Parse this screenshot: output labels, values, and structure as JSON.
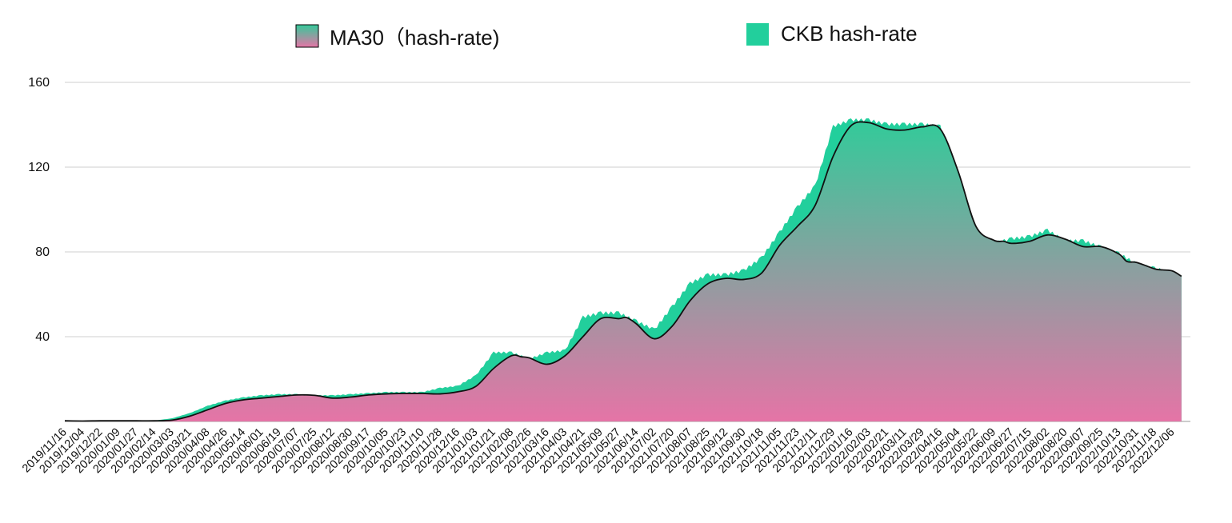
{
  "chart_data": {
    "type": "area",
    "colors": {
      "ckb": "#22cf9c",
      "ma_top": "#35c99a",
      "ma_bottom": "#e574a6",
      "ma_line": "#111111"
    },
    "legend": {
      "placement": "top",
      "entries": [
        {
          "label": "MA30（hash-rate)",
          "series": "ma30"
        },
        {
          "label": "CKB hash-rate",
          "series": "ckb"
        }
      ]
    },
    "grid": true,
    "ylim": [
      0,
      160
    ],
    "yticks": [
      40,
      80,
      120,
      160
    ],
    "xlim": [
      "2019-11-16",
      "2022-12-24"
    ],
    "xticks": [
      "2019/11/16",
      "2019/12/04",
      "2019/12/22",
      "2020/01/09",
      "2020/01/27",
      "2020/02/14",
      "2020/03/03",
      "2020/03/21",
      "2020/04/08",
      "2020/04/26",
      "2020/05/14",
      "2020/06/01",
      "2020/06/19",
      "2020/07/07",
      "2020/07/25",
      "2020/08/12",
      "2020/08/30",
      "2020/09/17",
      "2020/10/05",
      "2020/10/23",
      "2020/11/10",
      "2020/11/28",
      "2020/12/16",
      "2021/01/03",
      "2021/01/21",
      "2021/02/08",
      "2021/02/26",
      "2021/03/16",
      "2021/04/03",
      "2021/04/21",
      "2021/05/09",
      "2021/05/27",
      "2021/06/14",
      "2021/07/02",
      "2021/07/20",
      "2021/08/07",
      "2021/08/25",
      "2021/09/12",
      "2021/09/30",
      "2021/10/18",
      "2021/11/05",
      "2021/11/23",
      "2021/12/11",
      "2021/12/29",
      "2022/01/16",
      "2022/02/03",
      "2022/02/21",
      "2022/03/11",
      "2022/03/29",
      "2022/04/16",
      "2022/05/04",
      "2022/05/22",
      "2022/06/09",
      "2022/06/27",
      "2022/07/15",
      "2022/08/02",
      "2022/08/20",
      "2022/09/07",
      "2022/09/25",
      "2022/10/13",
      "2022/10/31",
      "2022/11/18",
      "2022/12/06"
    ],
    "series": [
      {
        "name": "MA30（hash-rate)",
        "key": "ma30",
        "points": [
          [
            "2019-11-16",
            0.3
          ],
          [
            "2019-12-04",
            0.2
          ],
          [
            "2019-12-22",
            0.3
          ],
          [
            "2020-01-09",
            0.3
          ],
          [
            "2020-01-27",
            0.3
          ],
          [
            "2020-02-14",
            0.3
          ],
          [
            "2020-03-03",
            0.6
          ],
          [
            "2020-03-21",
            2.5
          ],
          [
            "2020-04-08",
            5.5
          ],
          [
            "2020-04-26",
            8.5
          ],
          [
            "2020-05-14",
            10.2
          ],
          [
            "2020-06-01",
            11
          ],
          [
            "2020-06-19",
            11.8
          ],
          [
            "2020-07-07",
            12.5
          ],
          [
            "2020-07-25",
            12.3
          ],
          [
            "2020-08-12",
            11
          ],
          [
            "2020-08-30",
            11.5
          ],
          [
            "2020-09-17",
            12.5
          ],
          [
            "2020-10-05",
            13
          ],
          [
            "2020-10-23",
            13.2
          ],
          [
            "2020-11-10",
            13.2
          ],
          [
            "2020-11-28",
            13
          ],
          [
            "2020-12-16",
            14
          ],
          [
            "2021-01-03",
            16.5
          ],
          [
            "2021-01-21",
            25
          ],
          [
            "2021-02-08",
            31
          ],
          [
            "2021-02-18",
            30.5
          ],
          [
            "2021-02-26",
            30
          ],
          [
            "2021-03-16",
            27
          ],
          [
            "2021-04-03",
            31
          ],
          [
            "2021-04-21",
            40
          ],
          [
            "2021-05-09",
            48.5
          ],
          [
            "2021-05-27",
            48.5
          ],
          [
            "2021-06-04",
            49
          ],
          [
            "2021-06-14",
            46
          ],
          [
            "2021-07-02",
            39
          ],
          [
            "2021-07-20",
            45
          ],
          [
            "2021-08-07",
            57
          ],
          [
            "2021-08-25",
            65
          ],
          [
            "2021-09-12",
            67.5
          ],
          [
            "2021-09-30",
            67
          ],
          [
            "2021-10-18",
            70
          ],
          [
            "2021-11-05",
            83
          ],
          [
            "2021-11-23",
            92
          ],
          [
            "2021-12-11",
            102
          ],
          [
            "2021-12-29",
            125
          ],
          [
            "2022-01-16",
            139.5
          ],
          [
            "2022-02-03",
            141
          ],
          [
            "2022-02-21",
            138
          ],
          [
            "2022-03-11",
            137.5
          ],
          [
            "2022-03-29",
            139
          ],
          [
            "2022-04-16",
            138
          ],
          [
            "2022-05-04",
            118
          ],
          [
            "2022-05-22",
            92
          ],
          [
            "2022-06-09",
            85.5
          ],
          [
            "2022-06-19",
            85
          ],
          [
            "2022-06-27",
            84
          ],
          [
            "2022-07-15",
            85
          ],
          [
            "2022-08-02",
            88
          ],
          [
            "2022-08-20",
            86
          ],
          [
            "2022-09-07",
            82.5
          ],
          [
            "2022-09-25",
            82.5
          ],
          [
            "2022-10-13",
            79
          ],
          [
            "2022-10-21",
            75.5
          ],
          [
            "2022-10-31",
            75
          ],
          [
            "2022-11-18",
            72
          ],
          [
            "2022-11-26",
            71.5
          ],
          [
            "2022-12-06",
            71
          ],
          [
            "2022-12-15",
            68.5
          ]
        ]
      },
      {
        "name": "CKB hash-rate",
        "key": "ckb",
        "points": [
          [
            "2019-11-16",
            0.3
          ],
          [
            "2019-12-04",
            0.3
          ],
          [
            "2019-12-22",
            0.4
          ],
          [
            "2020-01-09",
            0.4
          ],
          [
            "2020-01-27",
            0.4
          ],
          [
            "2020-02-14",
            0.4
          ],
          [
            "2020-03-03",
            1.5
          ],
          [
            "2020-03-21",
            4
          ],
          [
            "2020-04-08",
            7.5
          ],
          [
            "2020-04-26",
            10
          ],
          [
            "2020-05-14",
            11.5
          ],
          [
            "2020-06-01",
            12.5
          ],
          [
            "2020-06-19",
            13
          ],
          [
            "2020-07-07",
            13
          ],
          [
            "2020-07-25",
            12.5
          ],
          [
            "2020-08-12",
            12.5
          ],
          [
            "2020-08-30",
            13
          ],
          [
            "2020-09-17",
            13.5
          ],
          [
            "2020-10-05",
            14
          ],
          [
            "2020-10-23",
            14
          ],
          [
            "2020-11-10",
            14
          ],
          [
            "2020-11-28",
            16
          ],
          [
            "2020-12-16",
            17
          ],
          [
            "2021-01-03",
            22
          ],
          [
            "2021-01-21",
            33
          ],
          [
            "2021-02-08",
            33
          ],
          [
            "2021-02-26",
            30
          ],
          [
            "2021-03-16",
            33
          ],
          [
            "2021-04-03",
            34
          ],
          [
            "2021-04-21",
            50
          ],
          [
            "2021-05-09",
            52
          ],
          [
            "2021-05-27",
            52
          ],
          [
            "2021-06-14",
            48
          ],
          [
            "2021-07-02",
            44
          ],
          [
            "2021-07-20",
            55
          ],
          [
            "2021-08-07",
            66
          ],
          [
            "2021-08-25",
            70
          ],
          [
            "2021-09-12",
            70
          ],
          [
            "2021-09-30",
            72
          ],
          [
            "2021-10-18",
            78
          ],
          [
            "2021-11-05",
            90
          ],
          [
            "2021-11-23",
            102
          ],
          [
            "2021-12-11",
            112
          ],
          [
            "2021-12-29",
            140
          ],
          [
            "2022-01-16",
            143
          ],
          [
            "2022-02-03",
            143
          ],
          [
            "2022-02-21",
            141
          ],
          [
            "2022-03-11",
            141
          ],
          [
            "2022-03-29",
            141
          ],
          [
            "2022-04-16",
            140
          ],
          [
            "2022-05-04",
            115
          ],
          [
            "2022-05-22",
            88
          ],
          [
            "2022-06-09",
            85
          ],
          [
            "2022-06-27",
            87
          ],
          [
            "2022-07-15",
            88
          ],
          [
            "2022-08-02",
            91
          ],
          [
            "2022-08-20",
            86
          ],
          [
            "2022-09-07",
            86
          ],
          [
            "2022-09-25",
            83
          ],
          [
            "2022-10-13",
            80
          ],
          [
            "2022-10-31",
            75
          ],
          [
            "2022-11-18",
            73
          ],
          [
            "2022-12-06",
            71
          ],
          [
            "2022-12-15",
            69
          ]
        ]
      }
    ]
  }
}
